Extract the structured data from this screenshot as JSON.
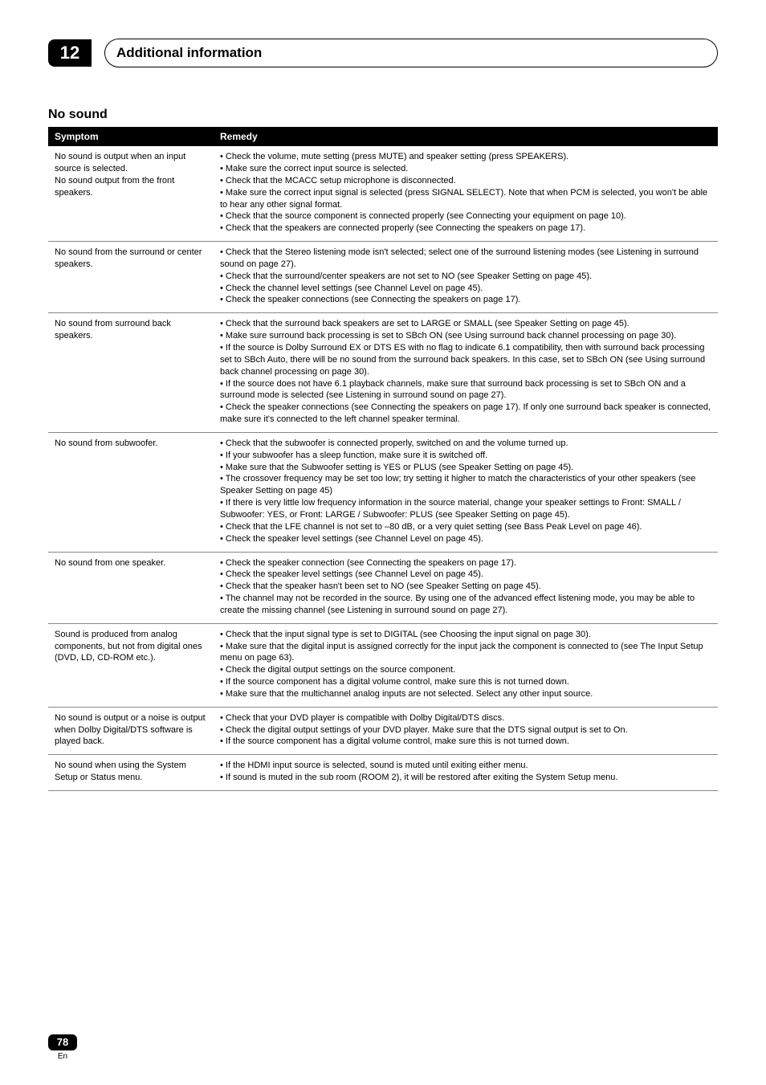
{
  "chapter": {
    "number": "12",
    "title": "Additional information"
  },
  "section_title": "No sound",
  "table": {
    "head_symptom": "Symptom",
    "head_remedy": "Remedy",
    "rows": [
      {
        "symptom": "No sound is output when an input source is selected.\nNo sound output from the front speakers.",
        "remedy": "• Check the volume, mute setting (press MUTE) and speaker setting (press SPEAKERS).\n• Make sure the correct input source is selected.\n• Check that the MCACC setup microphone is disconnected.\n• Make sure the correct input signal is selected (press SIGNAL SELECT). Note that when PCM is selected, you won't be able to hear any other signal format.\n• Check that the source component is connected properly (see Connecting your equipment on page 10).\n• Check that the speakers are connected properly (see Connecting the speakers on page 17)."
      },
      {
        "symptom": "No sound from the surround or center speakers.",
        "remedy": "• Check that the Stereo listening mode isn't selected; select one of the surround listening modes (see Listening in surround sound on page 27).\n• Check that the surround/center speakers are not set to NO (see Speaker Setting on page 45).\n• Check the channel level settings (see Channel Level on page 45).\n• Check the speaker connections (see Connecting the speakers on page 17)."
      },
      {
        "symptom": "No sound from surround back speakers.",
        "remedy": "• Check that the surround back speakers are set to LARGE or SMALL (see Speaker Setting on page 45).\n• Make sure surround back processing is set to SBch ON (see Using surround back channel processing on page 30).\n• If the source is Dolby Surround EX or DTS ES with no flag to indicate 6.1 compatibility, then with surround back processing set to SBch Auto, there will be no sound from the surround back speakers. In this case, set to SBch ON (see Using surround back channel processing on page 30).\n• If the source does not have 6.1 playback channels, make sure that surround back processing is set to SBch ON and a surround mode is selected (see Listening in surround sound on page 27).\n• Check the speaker connections (see Connecting the speakers on page 17). If only one surround back speaker is connected, make sure it's connected to the left channel speaker terminal."
      },
      {
        "symptom": "No sound from subwoofer.",
        "remedy": "• Check that the subwoofer is connected properly, switched on and the volume turned up.\n• If your subwoofer has a sleep function, make sure it is switched off.\n• Make sure that the Subwoofer setting is YES or PLUS (see Speaker Setting on page 45).\n• The crossover frequency may be set too low; try setting it higher to match the characteristics of your other speakers (see Speaker Setting on page 45)\n• If there is very little low frequency information in the source material, change your speaker settings to Front: SMALL / Subwoofer: YES, or Front: LARGE / Subwoofer: PLUS (see Speaker Setting on page 45).\n• Check that the LFE channel is not set to –80 dB, or a very quiet setting (see Bass Peak Level on page 46).\n• Check the speaker level settings (see Channel Level on page 45)."
      },
      {
        "symptom": "No sound from one speaker.",
        "remedy": "• Check the speaker connection (see Connecting the speakers on page 17).\n• Check the speaker level settings (see Channel Level on page 45).\n• Check that the speaker hasn't been set to NO (see Speaker Setting on page 45).\n• The channel may not be recorded in the source. By using one of the advanced effect listening mode, you may be able to create the missing channel (see Listening in surround sound on page 27)."
      },
      {
        "symptom": "Sound is produced from analog components, but not from digital ones (DVD, LD, CD-ROM etc.).",
        "remedy": "• Check that the input signal type is set to DIGITAL (see Choosing the input signal on page 30).\n• Make sure that the digital input is assigned correctly for the input jack the component is connected to (see The Input Setup menu on page 63).\n• Check the digital output settings on the source component.\n• If the source component has a digital volume control, make sure this is not turned down.\n• Make sure that the multichannel analog inputs are not selected. Select any other input source."
      },
      {
        "symptom": "No sound is output or a noise is output when Dolby Digital/DTS software is played back.",
        "remedy": "• Check that your DVD player is compatible with Dolby Digital/DTS discs.\n• Check the digital output settings of your DVD player. Make sure that the DTS signal output is set to On.\n• If the source component has a digital volume control, make sure this is not turned down."
      },
      {
        "symptom": "No sound when using the System Setup or Status menu.",
        "remedy": "• If the HDMI input source is selected, sound is muted until exiting either menu.\n• If sound is muted in the sub room (ROOM 2), it will be restored after exiting the System Setup menu."
      }
    ]
  },
  "footer": {
    "page_number": "78",
    "lang": "En"
  }
}
